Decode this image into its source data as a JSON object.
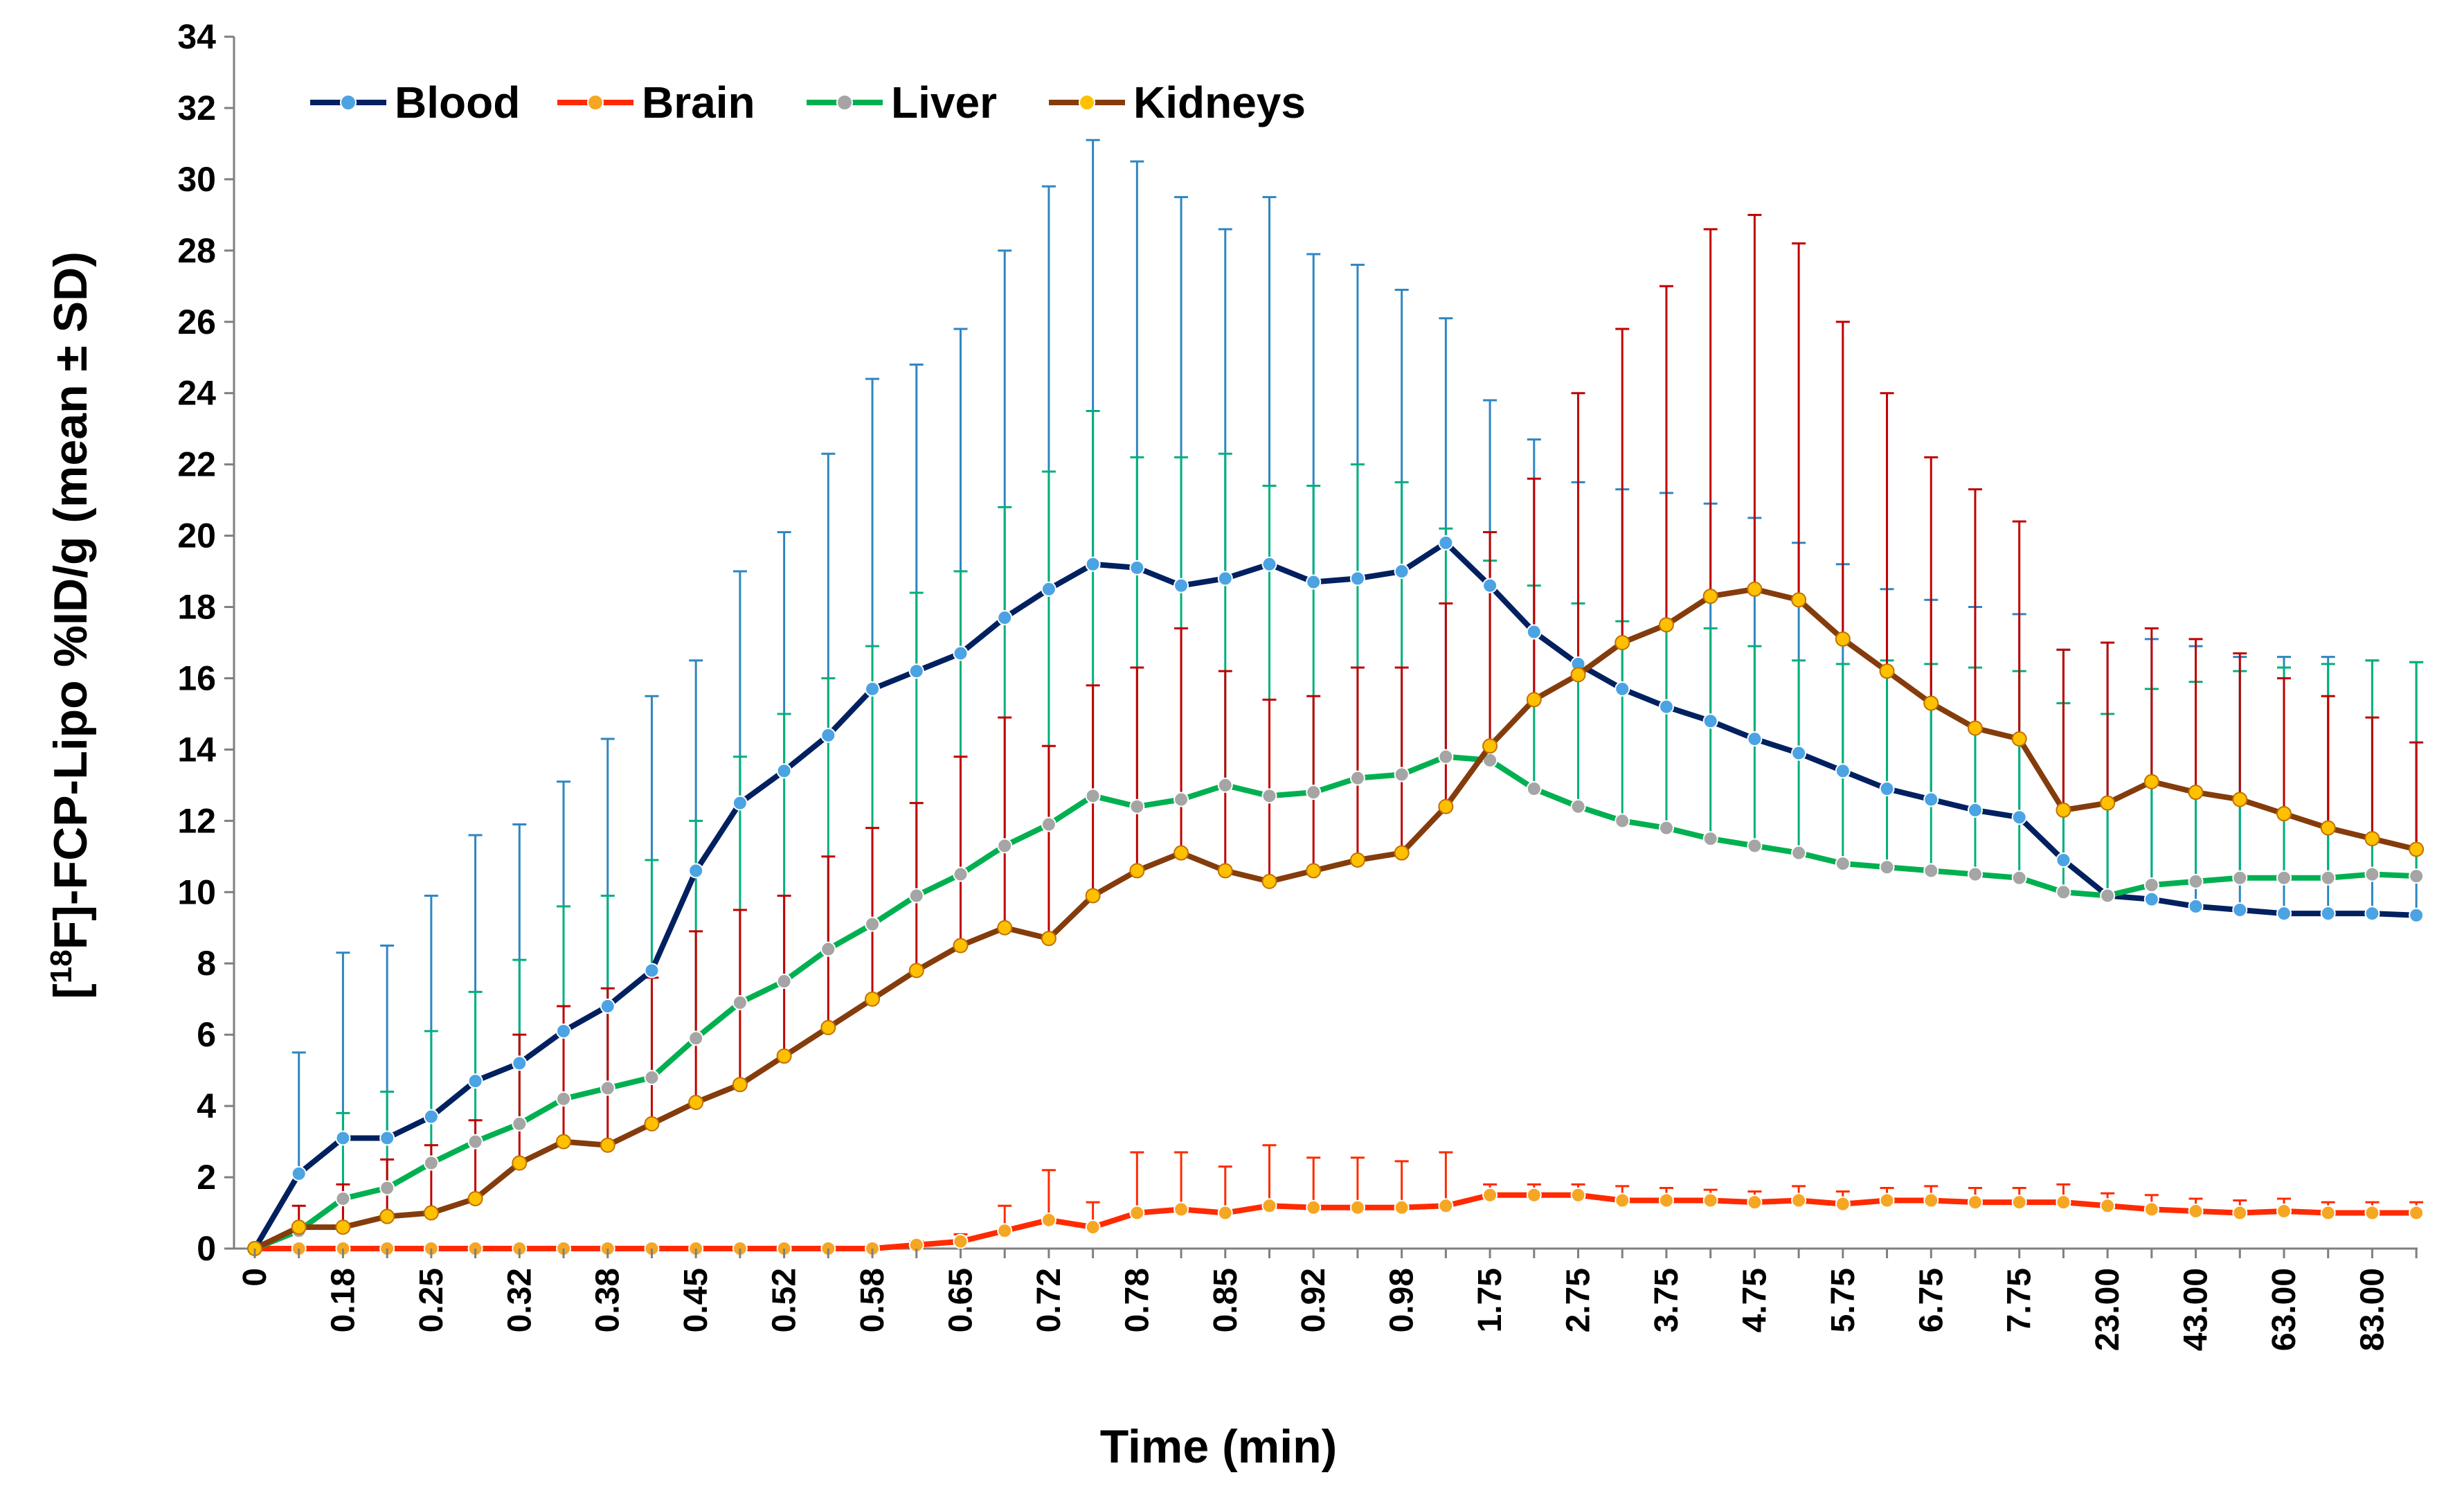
{
  "chart_data": {
    "type": "line",
    "title": "",
    "xlabel": "Time (min)",
    "ylabel_parts": {
      "bracket_open": "[",
      "superscript": "18",
      "rest": "F]-FCP-Lipo %ID/g (mean ± SD)"
    },
    "ylim": [
      0,
      34
    ],
    "yticks": [
      "0",
      "2",
      "4",
      "6",
      "8",
      "10",
      "12",
      "14",
      "16",
      "18",
      "20",
      "22",
      "24",
      "26",
      "28",
      "30",
      "32",
      "34"
    ],
    "tick_labels": [
      "0",
      "",
      "0.18",
      "",
      "0.25",
      "",
      "0.32",
      "",
      "0.38",
      "",
      "0.45",
      "",
      "0.52",
      "",
      "0.58",
      "",
      "0.65",
      "",
      "0.72",
      "",
      "0.78",
      "",
      "0.85",
      "",
      "0.92",
      "",
      "0.98",
      "",
      "1.75",
      "",
      "2.75",
      "",
      "3.75",
      "",
      "4.75",
      "",
      "5.75",
      "",
      "6.75",
      "",
      "7.75",
      "",
      "23.00",
      "",
      "43.00",
      "",
      "63.00",
      "",
      "83.00",
      ""
    ],
    "legend_position": "top-left",
    "series": [
      {
        "name": "Blood",
        "line_color": "#002060",
        "marker_color": "#4BA3E3",
        "err_color": "#2E86C1",
        "values": [
          0,
          2.1,
          3.1,
          3.1,
          3.7,
          4.7,
          5.2,
          6.1,
          6.8,
          7.8,
          10.6,
          12.5,
          13.4,
          14.4,
          15.7,
          16.2,
          16.7,
          17.7,
          18.5,
          19.2,
          19.1,
          18.6,
          18.8,
          19.2,
          18.7,
          18.8,
          19.0,
          19.8,
          18.6,
          17.3,
          16.4,
          15.7,
          15.2,
          14.8,
          14.3,
          13.9,
          13.4,
          12.9,
          12.6,
          12.3,
          12.1,
          10.9,
          9.9,
          9.8,
          9.6,
          9.5,
          9.4,
          9.4,
          9.4,
          9.35
        ],
        "errors": [
          0,
          3.4,
          5.2,
          5.4,
          6.2,
          6.9,
          6.7,
          7.0,
          7.5,
          7.7,
          5.9,
          6.5,
          6.7,
          7.9,
          8.7,
          8.6,
          9.1,
          10.3,
          11.3,
          11.9,
          11.4,
          10.9,
          9.8,
          10.3,
          9.2,
          8.8,
          7.9,
          6.3,
          5.2,
          5.4,
          5.1,
          5.6,
          6.0,
          6.1,
          6.2,
          5.9,
          5.8,
          5.6,
          5.6,
          5.7,
          5.7,
          5.9,
          7.1,
          7.3,
          7.3,
          7.1,
          7.2,
          7.2,
          7.1,
          7.1
        ]
      },
      {
        "name": "Brain",
        "line_color": "#FF2A00",
        "marker_color": "#F5A623",
        "err_color": "#FF2A00",
        "values": [
          0,
          0,
          0,
          0,
          0,
          0,
          0,
          0,
          0,
          0,
          0,
          0,
          0,
          0,
          0,
          0.1,
          0.2,
          0.5,
          0.8,
          0.6,
          1.0,
          1.1,
          1.0,
          1.2,
          1.15,
          1.15,
          1.15,
          1.2,
          1.5,
          1.5,
          1.5,
          1.35,
          1.35,
          1.35,
          1.3,
          1.35,
          1.25,
          1.35,
          1.35,
          1.3,
          1.3,
          1.3,
          1.2,
          1.1,
          1.05,
          1.0,
          1.05,
          1.0,
          1.0,
          1.0
        ],
        "errors": [
          0,
          0,
          0,
          0,
          0,
          0,
          0,
          0,
          0,
          0,
          0,
          0,
          0,
          0,
          0,
          0.1,
          0.2,
          0.7,
          1.4,
          0.7,
          1.7,
          1.6,
          1.3,
          1.7,
          1.4,
          1.4,
          1.3,
          1.5,
          0.3,
          0.3,
          0.3,
          0.4,
          0.35,
          0.3,
          0.3,
          0.4,
          0.35,
          0.35,
          0.4,
          0.4,
          0.4,
          0.5,
          0.35,
          0.4,
          0.35,
          0.35,
          0.35,
          0.3,
          0.3,
          0.3
        ]
      },
      {
        "name": "Liver",
        "line_color": "#00B050",
        "marker_color": "#A5A5A5",
        "err_color": "#00B07A",
        "values": [
          0,
          0.5,
          1.4,
          1.7,
          2.4,
          3.0,
          3.5,
          4.2,
          4.5,
          4.8,
          5.9,
          6.9,
          7.5,
          8.4,
          9.1,
          9.9,
          10.5,
          11.3,
          11.9,
          12.7,
          12.4,
          12.6,
          13.0,
          12.7,
          12.8,
          13.2,
          13.3,
          13.8,
          13.7,
          12.9,
          12.4,
          12.0,
          11.8,
          11.5,
          11.3,
          11.1,
          10.8,
          10.7,
          10.6,
          10.5,
          10.4,
          10.0,
          9.9,
          10.2,
          10.3,
          10.4,
          10.4,
          10.4,
          10.5,
          10.45
        ],
        "errors": [
          0,
          0,
          2.4,
          2.7,
          3.7,
          4.2,
          4.6,
          5.4,
          5.4,
          6.1,
          6.1,
          6.9,
          7.5,
          7.6,
          7.8,
          8.5,
          8.5,
          9.5,
          9.9,
          10.8,
          9.8,
          9.6,
          9.3,
          8.7,
          8.6,
          8.8,
          8.2,
          6.4,
          5.6,
          5.7,
          5.7,
          5.6,
          5.7,
          5.9,
          5.6,
          5.4,
          5.6,
          5.8,
          5.8,
          5.8,
          5.8,
          5.3,
          5.1,
          5.5,
          5.6,
          5.8,
          5.9,
          6.0,
          6.0,
          6.0
        ]
      },
      {
        "name": "Kidneys",
        "line_color": "#843C0C",
        "marker_color": "#FFC000",
        "err_color": "#C00000",
        "values": [
          0,
          0.6,
          0.6,
          0.9,
          1.0,
          1.4,
          2.4,
          3.0,
          2.9,
          3.5,
          4.1,
          4.6,
          5.4,
          6.2,
          7.0,
          7.8,
          8.5,
          9.0,
          8.7,
          9.9,
          10.6,
          11.1,
          10.6,
          10.3,
          10.6,
          10.9,
          11.1,
          12.4,
          14.1,
          15.4,
          16.1,
          17.0,
          17.5,
          18.3,
          18.5,
          18.2,
          17.1,
          16.2,
          15.3,
          14.6,
          14.3,
          12.3,
          12.5,
          13.1,
          12.8,
          12.6,
          12.2,
          11.8,
          11.5,
          11.2
        ],
        "errors": [
          0,
          0.6,
          1.2,
          1.6,
          1.9,
          2.2,
          3.6,
          3.8,
          4.4,
          4.1,
          4.8,
          4.9,
          4.5,
          4.8,
          4.8,
          4.7,
          5.3,
          5.9,
          5.4,
          5.9,
          5.7,
          6.3,
          5.6,
          5.1,
          4.9,
          5.4,
          5.2,
          5.7,
          6.0,
          6.2,
          7.9,
          8.8,
          9.5,
          10.3,
          10.5,
          10.0,
          8.9,
          7.8,
          6.9,
          6.7,
          6.1,
          4.5,
          4.5,
          4.3,
          4.3,
          4.1,
          3.8,
          3.7,
          3.4,
          3.0
        ]
      }
    ]
  }
}
